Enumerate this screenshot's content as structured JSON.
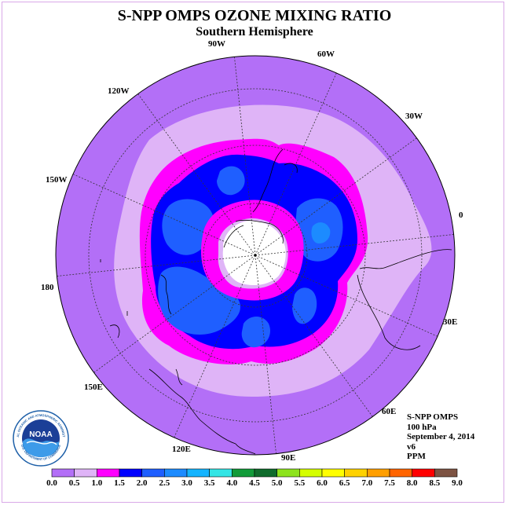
{
  "header": {
    "title": "S-NPP OMPS OZONE MIXING RATIO",
    "subtitle": "Southern Hemisphere"
  },
  "map": {
    "projection": "south polar stereographic",
    "longitude_labels": [
      "90W",
      "60W",
      "30W",
      "0",
      "30E",
      "60E",
      "90E",
      "120E",
      "150E",
      "180",
      "150W",
      "120W"
    ]
  },
  "info": {
    "instrument": "S-NPP OMPS",
    "level": "100 hPa",
    "date": "September 4, 2014",
    "version": "v6",
    "units": "PPM"
  },
  "logo": {
    "text": "NOAA",
    "ring_text": "NATIONAL OCEANIC AND ATMOSPHERIC ADMINISTRATION",
    "ring_text_bottom": "U.S. DEPARTMENT OF COMMERCE"
  },
  "colorbar": {
    "ticks": [
      "0.0",
      "0.5",
      "1.0",
      "1.5",
      "2.0",
      "2.5",
      "3.0",
      "3.5",
      "4.0",
      "4.5",
      "5.0",
      "5.5",
      "6.0",
      "6.5",
      "7.0",
      "7.5",
      "8.0",
      "8.5",
      "9.0"
    ],
    "colors": [
      "#b36ff7",
      "#dfb4f7",
      "#ff00ff",
      "#0000ff",
      "#1f5fff",
      "#1c8bff",
      "#14b4ff",
      "#33e5e5",
      "#119b39",
      "#0f6c2c",
      "#8de31c",
      "#d5ff00",
      "#ffff00",
      "#ffd200",
      "#ff9f00",
      "#ff6400",
      "#ff0000",
      "#7d5343"
    ]
  }
}
